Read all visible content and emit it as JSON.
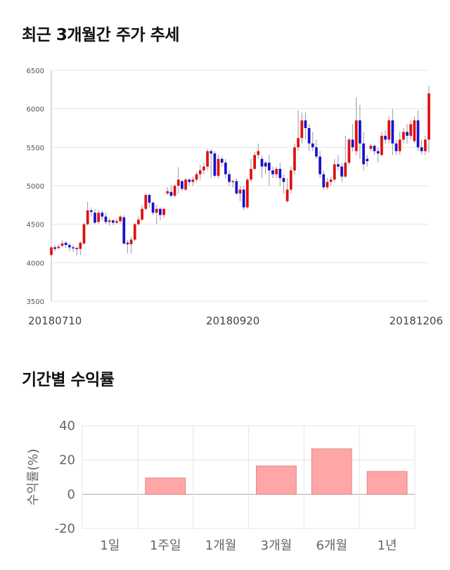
{
  "titles": {
    "price_trend": "최근 3개월간 주가 추세",
    "period_returns": "기간별 수익률"
  },
  "chart_data": [
    {
      "type": "candlestick",
      "ylim": [
        3500,
        6500
      ],
      "yticks": [
        3500,
        4000,
        4500,
        5000,
        5500,
        6000,
        6500
      ],
      "xtick_labels": [
        {
          "index": 0,
          "label": "20180710"
        },
        {
          "index": 50,
          "label": "20180920"
        },
        {
          "index": 100,
          "label": "20181206"
        }
      ],
      "up_color": "#e01010",
      "down_color": "#1a10d0",
      "grid": true,
      "ohlc": [
        [
          4100,
          4200,
          4080,
          4220
        ],
        [
          4200,
          4180,
          4150,
          4230
        ],
        [
          4190,
          4210,
          4170,
          4240
        ],
        [
          4220,
          4250,
          4200,
          4290
        ],
        [
          4260,
          4230,
          4190,
          4280
        ],
        [
          4230,
          4200,
          4150,
          4260
        ],
        [
          4200,
          4190,
          4140,
          4230
        ],
        [
          4190,
          4180,
          4090,
          4210
        ],
        [
          4180,
          4260,
          4100,
          4280
        ],
        [
          4250,
          4500,
          4230,
          4520
        ],
        [
          4500,
          4680,
          4480,
          4790
        ],
        [
          4680,
          4660,
          4600,
          4720
        ],
        [
          4650,
          4520,
          4500,
          4700
        ],
        [
          4530,
          4650,
          4500,
          4680
        ],
        [
          4650,
          4600,
          4550,
          4680
        ],
        [
          4600,
          4530,
          4500,
          4650
        ],
        [
          4530,
          4550,
          4480,
          4580
        ],
        [
          4550,
          4520,
          4490,
          4560
        ],
        [
          4520,
          4540,
          4500,
          4570
        ],
        [
          4540,
          4600,
          4510,
          4620
        ],
        [
          4590,
          4250,
          4230,
          4620
        ],
        [
          4260,
          4240,
          4120,
          4300
        ],
        [
          4240,
          4300,
          4120,
          4340
        ],
        [
          4300,
          4500,
          4280,
          4520
        ],
        [
          4500,
          4560,
          4480,
          4600
        ],
        [
          4560,
          4700,
          4540,
          4750
        ],
        [
          4700,
          4880,
          4680,
          4900
        ],
        [
          4880,
          4780,
          4720,
          4900
        ],
        [
          4780,
          4650,
          4620,
          4800
        ],
        [
          4650,
          4700,
          4500,
          4750
        ],
        [
          4700,
          4620,
          4550,
          4720
        ],
        [
          4620,
          4700,
          4580,
          4720
        ],
        [
          4900,
          4930,
          4880,
          4980
        ],
        [
          4920,
          4870,
          4850,
          5010
        ],
        [
          4870,
          5000,
          4850,
          5020
        ],
        [
          5000,
          5080,
          4900,
          5240
        ],
        [
          5060,
          4960,
          4930,
          5080
        ],
        [
          4950,
          5080,
          4930,
          5100
        ],
        [
          5080,
          5050,
          5000,
          5100
        ],
        [
          5050,
          5080,
          5000,
          5120
        ],
        [
          5080,
          5150,
          5050,
          5180
        ],
        [
          5150,
          5200,
          5080,
          5280
        ],
        [
          5200,
          5250,
          5150,
          5300
        ],
        [
          5250,
          5450,
          5200,
          5480
        ],
        [
          5450,
          5420,
          5100,
          5480
        ],
        [
          5420,
          5130,
          5100,
          5450
        ],
        [
          5130,
          5350,
          5100,
          5400
        ],
        [
          5350,
          5300,
          5250,
          5380
        ],
        [
          5300,
          5150,
          5100,
          5350
        ],
        [
          5150,
          5050,
          5000,
          5200
        ],
        [
          5050,
          5060,
          4980,
          5080
        ],
        [
          5060,
          4900,
          4880,
          5100
        ],
        [
          4900,
          4950,
          4800,
          5000
        ],
        [
          4950,
          4720,
          4680,
          5000
        ],
        [
          4720,
          5080,
          4700,
          5100
        ],
        [
          5080,
          5220,
          5050,
          5350
        ],
        [
          5220,
          5400,
          5200,
          5440
        ],
        [
          5400,
          5450,
          5350,
          5550
        ],
        [
          5350,
          5250,
          5100,
          5400
        ],
        [
          5300,
          5250,
          5150,
          5320
        ],
        [
          5300,
          5200,
          5000,
          5400
        ],
        [
          5200,
          5150,
          5100,
          5250
        ],
        [
          5150,
          5220,
          5100,
          5250
        ],
        [
          5220,
          5100,
          5000,
          5300
        ],
        [
          5100,
          5050,
          4900,
          5150
        ],
        [
          4800,
          4950,
          4780,
          5100
        ],
        [
          4950,
          5200,
          4900,
          5250
        ],
        [
          5200,
          5500,
          5150,
          5550
        ],
        [
          5500,
          5620,
          5450,
          5980
        ],
        [
          5620,
          5850,
          5550,
          5950
        ],
        [
          5850,
          5750,
          5600,
          5950
        ],
        [
          5750,
          5550,
          5450,
          5800
        ],
        [
          5550,
          5500,
          5450,
          5700
        ],
        [
          5500,
          5380,
          5350,
          5600
        ],
        [
          5380,
          5150,
          5100,
          5450
        ],
        [
          5150,
          4980,
          4950,
          5200
        ],
        [
          4980,
          5050,
          4950,
          5100
        ],
        [
          5050,
          5080,
          5000,
          5120
        ],
        [
          5080,
          5280,
          5050,
          5350
        ],
        [
          5280,
          5250,
          5200,
          5400
        ],
        [
          5250,
          5120,
          5050,
          5300
        ],
        [
          5120,
          5300,
          5100,
          5650
        ],
        [
          5300,
          5600,
          5280,
          5620
        ],
        [
          5600,
          5500,
          5450,
          5800
        ],
        [
          5450,
          5850,
          5400,
          6150
        ],
        [
          5850,
          5550,
          5350,
          6050
        ],
        [
          5550,
          5280,
          5200,
          5700
        ],
        [
          5350,
          5320,
          5250,
          5400
        ],
        [
          5480,
          5520,
          5450,
          5550
        ],
        [
          5520,
          5450,
          5400,
          5540
        ],
        [
          5450,
          5420,
          5300,
          5500
        ],
        [
          5400,
          5650,
          5380,
          5700
        ],
        [
          5650,
          5600,
          5550,
          5720
        ],
        [
          5600,
          5850,
          5550,
          5900
        ],
        [
          5850,
          5550,
          5400,
          6000
        ],
        [
          5550,
          5450,
          5400,
          5600
        ],
        [
          5450,
          5600,
          5400,
          5700
        ],
        [
          5600,
          5700,
          5550,
          5750
        ],
        [
          5700,
          5650,
          5550,
          5800
        ],
        [
          5650,
          5800,
          5600,
          5850
        ],
        [
          5580,
          5850,
          5550,
          5900
        ],
        [
          5850,
          5500,
          5450,
          5980
        ],
        [
          5500,
          5450,
          5400,
          5600
        ],
        [
          5450,
          5600,
          5400,
          5650
        ],
        [
          5600,
          6200,
          5430,
          6300
        ]
      ]
    },
    {
      "type": "bar",
      "categories": [
        "1일",
        "1주일",
        "1개월",
        "3개월",
        "6개월",
        "1년"
      ],
      "values": [
        0,
        9.5,
        0,
        16.5,
        26.5,
        13.3
      ],
      "ylabel": "수익률(%)",
      "ylim": [
        -20,
        40
      ],
      "yticks": [
        -20,
        0,
        20,
        40
      ],
      "bar_color": "#ffa6a6",
      "bar_border": "#e08585",
      "grid": true
    }
  ]
}
